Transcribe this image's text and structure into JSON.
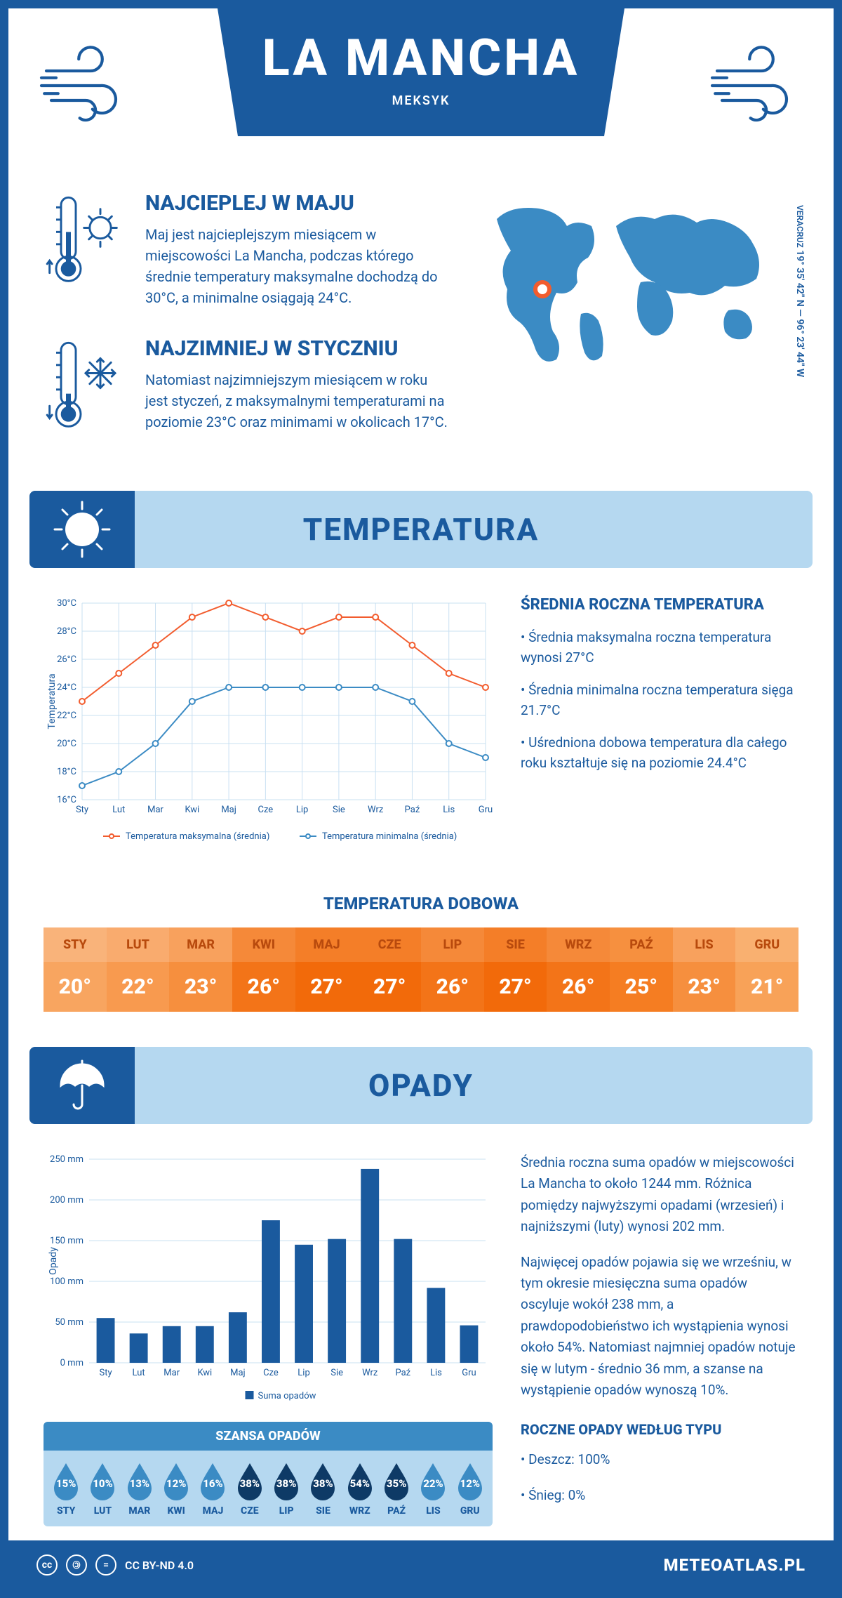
{
  "header": {
    "title": "LA MANCHA",
    "country": "MEKSYK"
  },
  "location": {
    "region": "VERACRUZ",
    "lat": "19° 35' 42\" N",
    "lon": "96° 23' 44\" W"
  },
  "hottest": {
    "title": "NAJCIEPLEJ W MAJU",
    "text": "Maj jest najcieplejszym miesiącem w miejscowości La Mancha, podczas którego średnie temperatury maksymalne dochodzą do 30°C, a minimalne osiągają 24°C."
  },
  "coldest": {
    "title": "NAJZIMNIEJ W STYCZNIU",
    "text": "Natomiast najzimniejszym miesiącem w roku jest styczeń, z maksymalnymi temperaturami na poziomie 23°C oraz minimami w okolicach 17°C."
  },
  "temperature": {
    "section_title": "TEMPERATURA",
    "side_title": "ŚREDNIA ROCZNA TEMPERATURA",
    "bullets": [
      "• Średnia maksymalna roczna temperatura wynosi 27°C",
      "• Średnia minimalna roczna temperatura sięga 21.7°C",
      "• Uśredniona dobowa temperatura dla całego roku kształtuje się na poziomie 24.4°C"
    ],
    "chart": {
      "type": "line",
      "months": [
        "Sty",
        "Lut",
        "Mar",
        "Kwi",
        "Maj",
        "Cze",
        "Lip",
        "Sie",
        "Wrz",
        "Paź",
        "Lis",
        "Gru"
      ],
      "ylabel": "Temperatura",
      "ylim": [
        16,
        30
      ],
      "ytick_step": 2,
      "ytick_suffix": "°C",
      "grid_color": "#c9e0f2",
      "background_color": "#ffffff",
      "series": [
        {
          "name": "Temperatura maksymalna (średnia)",
          "color": "#f25c2e",
          "values": [
            23,
            25,
            27,
            29,
            30,
            29,
            28,
            29,
            29,
            27,
            25,
            24
          ]
        },
        {
          "name": "Temperatura minimalna (średnia)",
          "color": "#3b8bc4",
          "values": [
            17,
            18,
            20,
            23,
            24,
            24,
            24,
            24,
            24,
            23,
            20,
            19
          ]
        }
      ],
      "line_width": 2,
      "marker": "circle",
      "marker_size": 4,
      "label_fontsize": 13
    },
    "daily": {
      "title": "TEMPERATURA DOBOWA",
      "months": [
        "STY",
        "LUT",
        "MAR",
        "KWI",
        "MAJ",
        "CZE",
        "LIP",
        "SIE",
        "WRZ",
        "PAŹ",
        "LIS",
        "GRU"
      ],
      "values": [
        "20°",
        "22°",
        "23°",
        "26°",
        "27°",
        "27°",
        "26°",
        "27°",
        "26°",
        "25°",
        "23°",
        "21°"
      ],
      "header_colors": [
        "#f9b37a",
        "#f9ab6e",
        "#f8a15d",
        "#f58939",
        "#f47e28",
        "#f47e28",
        "#f58939",
        "#f47e28",
        "#f58939",
        "#f6903f",
        "#f8a15d",
        "#f9b070"
      ],
      "value_colors": [
        "#f8a560",
        "#f89a4f",
        "#f68f3e",
        "#f37418",
        "#f26a0a",
        "#f26a0a",
        "#f37418",
        "#f26a0a",
        "#f37418",
        "#f57d22",
        "#f68f3e",
        "#f8a258"
      ],
      "header_text_color": "#b84a0d",
      "value_text_color": "#ffffff"
    }
  },
  "precip": {
    "section_title": "OPADY",
    "text1": "Średnia roczna suma opadów w miejscowości La Mancha to około 1244 mm. Różnica pomiędzy najwyższymi opadami (wrzesień) i najniższymi (luty) wynosi 202 mm.",
    "text2": "Najwięcej opadów pojawia się we wrześniu, w tym okresie miesięczna suma opadów oscyluje wokół 238 mm, a prawdopodobieństwo ich wystąpienia wynosi około 54%. Natomiast najmniej opadów notuje się w lutym - średnio 36 mm, a szanse na wystąpienie opadów wynoszą 10%.",
    "by_type_title": "ROCZNE OPADY WEDŁUG TYPU",
    "by_type": [
      "• Deszcz: 100%",
      "• Śnieg: 0%"
    ],
    "chart": {
      "type": "bar",
      "months": [
        "Sty",
        "Lut",
        "Mar",
        "Kwi",
        "Maj",
        "Cze",
        "Lip",
        "Sie",
        "Wrz",
        "Paź",
        "Lis",
        "Gru"
      ],
      "ylabel": "Opady",
      "ylim": [
        0,
        250
      ],
      "ytick_step": 50,
      "ytick_suffix": " mm",
      "values": [
        55,
        36,
        45,
        45,
        62,
        175,
        145,
        152,
        238,
        152,
        92,
        46
      ],
      "bar_color": "#1a5a9e",
      "grid_color": "#c9e0f2",
      "bar_width": 0.55,
      "legend": "Suma opadów",
      "label_fontsize": 13
    },
    "chance": {
      "title": "SZANSA OPADÓW",
      "months": [
        "STY",
        "LUT",
        "MAR",
        "KWI",
        "MAJ",
        "CZE",
        "LIP",
        "SIE",
        "WRZ",
        "PAŹ",
        "LIS",
        "GRU"
      ],
      "values": [
        "15%",
        "10%",
        "13%",
        "12%",
        "16%",
        "38%",
        "38%",
        "38%",
        "54%",
        "35%",
        "22%",
        "12%"
      ],
      "drop_color_low": "#3b8bc4",
      "drop_color_high": "#0e3a66",
      "high_threshold": 30
    }
  },
  "footer": {
    "license": "CC BY-ND 4.0",
    "site": "METEOATLAS.PL"
  }
}
